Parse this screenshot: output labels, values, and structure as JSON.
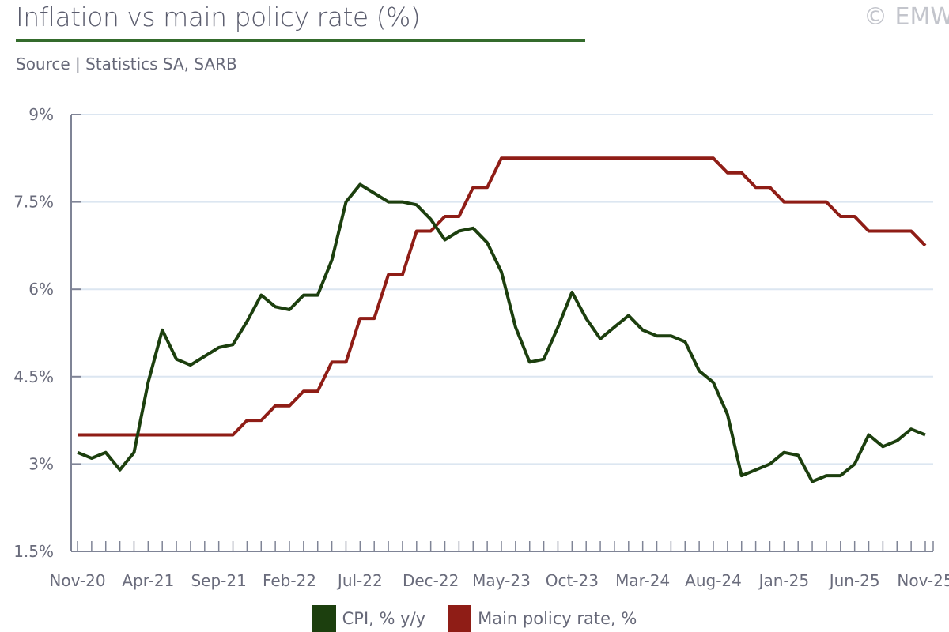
{
  "header": {
    "title": "Inflation vs main policy rate (%)",
    "source": "Source | Statistics SA, SARB",
    "copyright": "© EMW"
  },
  "colors": {
    "cpi": "#1c3f0e",
    "rate": "#8f1d16",
    "grid": "#dce6f1",
    "axis": "#7f8496",
    "title_rule": "#346b2c"
  },
  "chart_data": {
    "type": "line",
    "title": "Inflation vs main policy rate (%)",
    "xlabel": "",
    "ylabel": "",
    "ylim": [
      1.5,
      9
    ],
    "yticks": [
      1.5,
      3,
      4.5,
      6,
      7.5,
      9
    ],
    "ytick_labels": [
      "1.5%",
      "3%",
      "4.5%",
      "6%",
      "7.5%",
      "9%"
    ],
    "grid": "horizontal",
    "legend_position": "bottom",
    "x_start": "Nov-20",
    "x_count": 61,
    "xtick_labels": [
      "Nov-20",
      "Apr-21",
      "Sep-21",
      "Feb-22",
      "Jul-22",
      "Dec-22",
      "May-23",
      "Oct-23",
      "Mar-24",
      "Aug-24",
      "Jan-25",
      "Jun-25",
      "Nov-25"
    ],
    "xtick_every": 5,
    "series": [
      {
        "name": "CPI, % y/y",
        "color_key": "cpi",
        "values": [
          3.2,
          3.1,
          3.2,
          2.9,
          3.2,
          4.4,
          5.3,
          4.8,
          4.7,
          4.85,
          5.0,
          5.05,
          5.45,
          5.9,
          5.7,
          5.65,
          5.9,
          5.9,
          6.5,
          7.5,
          7.8,
          7.65,
          7.5,
          7.5,
          7.45,
          7.2,
          6.85,
          7.0,
          7.05,
          6.8,
          6.3,
          5.35,
          4.75,
          4.8,
          5.35,
          5.95,
          5.5,
          5.15,
          5.35,
          5.55,
          5.3,
          5.2,
          5.2,
          5.1,
          4.6,
          4.4,
          3.85,
          2.8,
          2.9,
          3.0,
          3.2,
          3.15,
          2.7,
          2.8,
          2.8,
          3.0,
          3.5,
          3.3,
          3.4,
          3.6,
          3.5
        ]
      },
      {
        "name": "Main policy rate, %",
        "color_key": "rate",
        "values": [
          3.5,
          3.5,
          3.5,
          3.5,
          3.5,
          3.5,
          3.5,
          3.5,
          3.5,
          3.5,
          3.5,
          3.5,
          3.75,
          3.75,
          4.0,
          4.0,
          4.25,
          4.25,
          4.75,
          4.75,
          5.5,
          5.5,
          6.25,
          6.25,
          7.0,
          7.0,
          7.25,
          7.25,
          7.75,
          7.75,
          8.25,
          8.25,
          8.25,
          8.25,
          8.25,
          8.25,
          8.25,
          8.25,
          8.25,
          8.25,
          8.25,
          8.25,
          8.25,
          8.25,
          8.25,
          8.25,
          8.0,
          8.0,
          7.75,
          7.75,
          7.5,
          7.5,
          7.5,
          7.5,
          7.25,
          7.25,
          7.0,
          7.0,
          7.0,
          7.0,
          6.75
        ]
      }
    ]
  }
}
